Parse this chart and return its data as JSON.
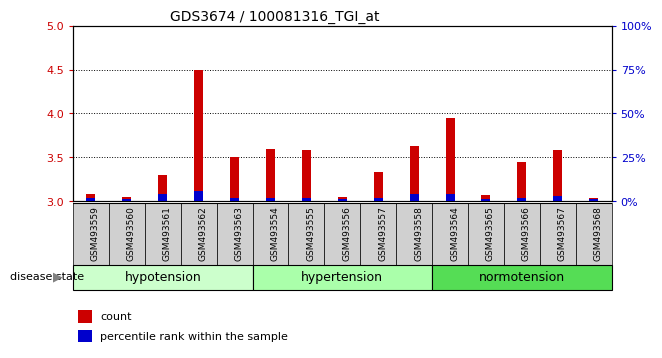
{
  "title": "GDS3674 / 100081316_TGI_at",
  "samples": [
    "GSM493559",
    "GSM493560",
    "GSM493561",
    "GSM493562",
    "GSM493563",
    "GSM493554",
    "GSM493555",
    "GSM493556",
    "GSM493557",
    "GSM493558",
    "GSM493564",
    "GSM493565",
    "GSM493566",
    "GSM493567",
    "GSM493568"
  ],
  "red_values": [
    3.08,
    3.05,
    3.3,
    4.5,
    3.5,
    3.6,
    3.58,
    3.05,
    3.33,
    3.63,
    3.95,
    3.07,
    3.45,
    3.58,
    3.03
  ],
  "blue_percentile": [
    2,
    1,
    4,
    6,
    2,
    2,
    2,
    1,
    2,
    4,
    4,
    1,
    2,
    3,
    1
  ],
  "groups": [
    {
      "label": "hypotension",
      "start": 0,
      "end": 5,
      "color": "#ccffcc"
    },
    {
      "label": "hypertension",
      "start": 5,
      "end": 10,
      "color": "#aaffaa"
    },
    {
      "label": "normotension",
      "start": 10,
      "end": 15,
      "color": "#55dd55"
    }
  ],
  "ylim_left": [
    3.0,
    5.0
  ],
  "ylim_right": [
    0,
    100
  ],
  "yticks_left": [
    3.0,
    3.5,
    4.0,
    4.5,
    5.0
  ],
  "yticks_right": [
    0,
    25,
    50,
    75,
    100
  ],
  "left_tick_color": "#cc0000",
  "right_tick_color": "#0000cc",
  "bar_color_red": "#cc0000",
  "bar_color_blue": "#0000cc",
  "legend_count_label": "count",
  "legend_percentile_label": "percentile rank within the sample",
  "sample_bg_color": "#d0d0d0",
  "plot_bg_color": "#ffffff"
}
